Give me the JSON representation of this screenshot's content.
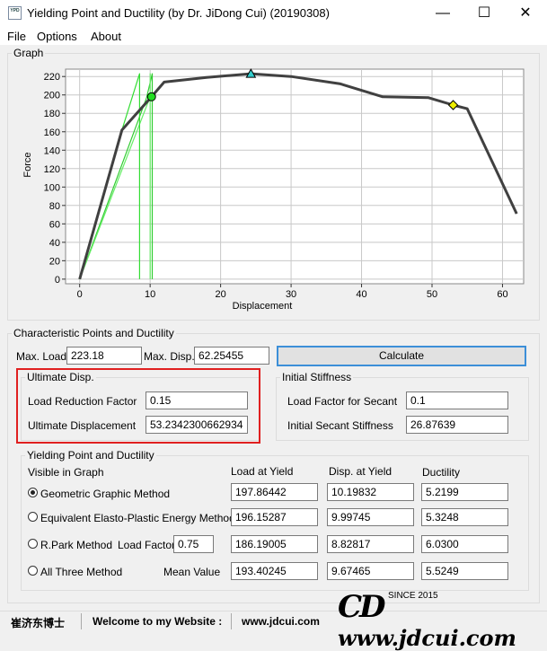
{
  "window": {
    "title": "Yielding Point and Ductility (by Dr. JiDong Cui) (20190308)",
    "icon_text": "YPD",
    "minimize_glyph": "—",
    "maximize_glyph": "☐",
    "close_glyph": "✕"
  },
  "menu": {
    "file": "File",
    "options": "Options",
    "about": "About"
  },
  "graph": {
    "legend": "Graph"
  },
  "chart_data": {
    "type": "line",
    "xlabel": "Displacement",
    "ylabel": "Force",
    "xlim": [
      -2,
      63
    ],
    "ylim": [
      -5,
      228
    ],
    "xticks": [
      0,
      10,
      20,
      30,
      40,
      50,
      60
    ],
    "yticks": [
      0,
      20,
      40,
      60,
      80,
      100,
      120,
      140,
      160,
      180,
      200,
      220
    ],
    "grid": true,
    "series": [
      {
        "color": "#404040",
        "x": [
          0,
          6,
          10.2,
          12,
          18,
          24.3,
          30,
          37,
          43,
          49.5,
          53,
          55,
          62
        ],
        "y": [
          0,
          162,
          198,
          214,
          219,
          223,
          220,
          212,
          198,
          197,
          189,
          185,
          71
        ]
      },
      {
        "color": "#33dd33",
        "x": [
          0,
          6,
          8.5,
          8.5
        ],
        "y": [
          0,
          162,
          223,
          0
        ]
      },
      {
        "color": "#66ee66",
        "x": [
          0,
          10,
          10,
          10
        ],
        "y": [
          0,
          198,
          223,
          0
        ]
      },
      {
        "color": "#33cc33",
        "x": [
          0,
          9.5,
          10.3,
          10.3
        ],
        "y": [
          0,
          197,
          223,
          0
        ]
      }
    ],
    "markers": [
      {
        "shape": "circle",
        "color": "#22dd22",
        "x": 10.2,
        "y": 198
      },
      {
        "shape": "triangle",
        "color": "#33cccc",
        "x": 24.3,
        "y": 223
      },
      {
        "shape": "diamond",
        "color": "#eeee00",
        "x": 53,
        "y": 189
      }
    ]
  },
  "characteristic": {
    "legend": "Characteristic Points and Ductility",
    "max_load_label": "Max. Load",
    "max_load": "223.18",
    "max_disp_label": "Max. Disp.",
    "max_disp": "62.25455",
    "calculate": "Calculate"
  },
  "ultimate": {
    "legend": "Ultimate Disp.",
    "reduction_label": "Load Reduction Factor",
    "reduction": "0.15",
    "disp_label": "Ultimate Displacement",
    "disp": "53.2342300662934"
  },
  "stiffness": {
    "legend": "Initial Stiffness",
    "factor_label": "Load Factor for Secant",
    "factor": "0.1",
    "secant_label": "Initial Secant Stiffness",
    "secant": "26.87639"
  },
  "yielding": {
    "legend": "Yielding Point and Ductility",
    "visible_label": "Visible in Graph",
    "col_load": "Load at Yield",
    "col_disp": "Disp. at Yield",
    "col_ductility": "Ductility",
    "load_factor_label": "Load Factor",
    "load_factor": "0.75",
    "mean_label": "Mean Value",
    "rows": [
      {
        "label": "Geometric Graphic Method",
        "load": "197.86442",
        "disp": "10.19832",
        "ductility": "5.2199",
        "checked": true
      },
      {
        "label": "Equivalent Elasto-Plastic Energy Method",
        "load": "196.15287",
        "disp": "9.99745",
        "ductility": "5.3248",
        "checked": false
      },
      {
        "label": "R.Park Method",
        "load": "186.19005",
        "disp": "8.82817",
        "ductility": "6.0300",
        "checked": false
      },
      {
        "label": "All Three Method",
        "load": "193.40245",
        "disp": "9.67465",
        "ductility": "5.5249",
        "checked": false
      }
    ]
  },
  "status": {
    "author": "崔济东博士",
    "welcome": "Welcome to my Website :",
    "site": "www.jdcui.com",
    "logo_mark": "CD",
    "logo_url": "www.jdcui.com",
    "since": "SINCE 2015"
  }
}
